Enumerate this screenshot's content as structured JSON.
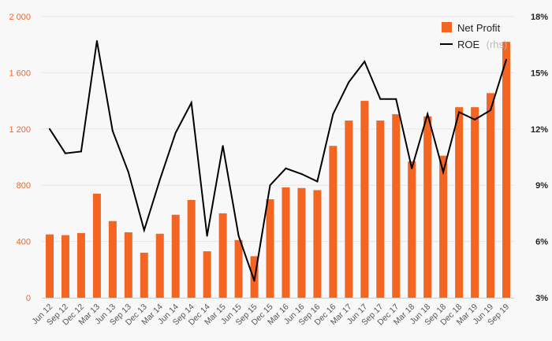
{
  "chart_data": {
    "type": "bar",
    "categories": [
      "Jun 12",
      "Sep 12",
      "Dec 12",
      "Mar 13",
      "Jun 13",
      "Sep 13",
      "Dec 13",
      "Mar 14",
      "Jun 14",
      "Sep 14",
      "Dec 14",
      "Mar 15",
      "Jun 15",
      "Sep 15",
      "Dec 15",
      "Mar 16",
      "Jun 16",
      "Sep 16",
      "Dec 16",
      "Mar 17",
      "Jun 17",
      "Sep 17",
      "Dec 17",
      "Mar 18",
      "Jun 18",
      "Sep 18",
      "Dec 18",
      "Mar 19",
      "Jun 19",
      "Sep 19"
    ],
    "series": [
      {
        "name": "Net Profit",
        "type": "bar",
        "axis": "left",
        "color": "#f26522",
        "values": [
          450,
          445,
          460,
          740,
          545,
          465,
          320,
          455,
          590,
          695,
          330,
          600,
          410,
          295,
          700,
          785,
          780,
          765,
          1080,
          1260,
          1400,
          1260,
          1305,
          970,
          1290,
          1010,
          1355,
          1355,
          1455,
          1820
        ]
      },
      {
        "name": "ROE",
        "name_suffix": "(rhs)",
        "type": "line",
        "axis": "right",
        "color": "#000000",
        "values": [
          12.0,
          10.7,
          10.8,
          16.7,
          11.9,
          9.7,
          6.6,
          9.3,
          11.8,
          13.4,
          6.3,
          11.1,
          6.3,
          3.9,
          9.0,
          9.9,
          9.6,
          9.2,
          12.8,
          14.5,
          15.6,
          13.6,
          13.6,
          9.9,
          12.8,
          9.7,
          12.9,
          12.5,
          13.0,
          15.7
        ]
      }
    ],
    "y_left": {
      "ylim": [
        0,
        2000
      ],
      "ticks": [
        "0",
        "400",
        "800",
        "1 200",
        "1 600",
        "2 000"
      ],
      "tick_values": [
        0,
        400,
        800,
        1200,
        1600,
        2000
      ]
    },
    "y_right": {
      "ylim": [
        3,
        18
      ],
      "ticks": [
        "3%",
        "6%",
        "9%",
        "12%",
        "15%",
        "18%"
      ],
      "tick_values": [
        3,
        6,
        9,
        12,
        15,
        18
      ]
    },
    "grid": true,
    "legend": "top-right"
  }
}
